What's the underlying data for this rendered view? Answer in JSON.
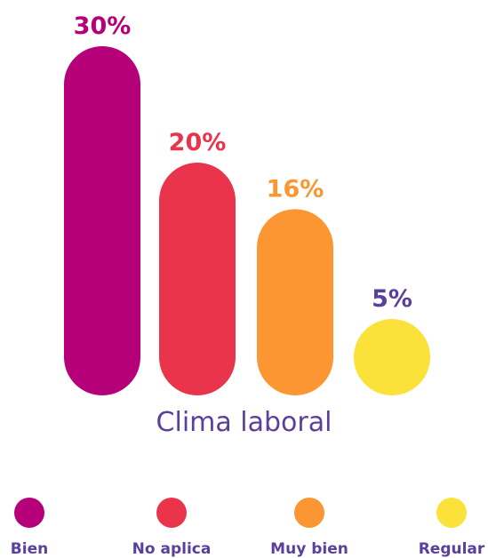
{
  "chart_data": {
    "type": "bar",
    "title": "Clima laboral",
    "categories": [
      "Bien",
      "No aplica",
      "Muy bien",
      "Regular"
    ],
    "values": [
      30,
      20,
      16,
      5
    ],
    "value_labels": [
      "30%",
      "20%",
      "16%",
      "5%"
    ],
    "unit": "%",
    "colors": [
      "#b5007a",
      "#ea344c",
      "#fb9632",
      "#fbe23b"
    ],
    "label_colors": [
      "#b5007a",
      "#ea344c",
      "#fb9632",
      "#5b3f9e"
    ],
    "grid": false,
    "legend_position": "bottom"
  },
  "title_color": "#5b3f9e"
}
